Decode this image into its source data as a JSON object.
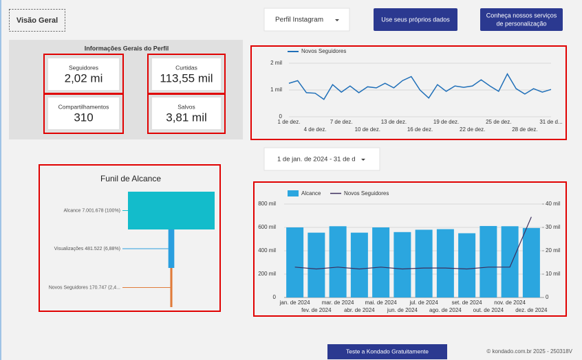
{
  "header": {
    "page_title": "Visão Geral",
    "profile_dropdown": "Perfil Instagram",
    "own_data_button": "Use seus  próprios dados",
    "services_button": [
      "Conheça nossos serviços",
      "de personalização"
    ],
    "date_range": "1 de jan. de 2024 - 31 de d"
  },
  "kpis": {
    "title": "Informações Gerais do Perfil",
    "items": [
      {
        "label": "Seguidores",
        "value": "2,02 mi"
      },
      {
        "label": "Curtidas",
        "value": "113,55 mil"
      },
      {
        "label": "Compartilhamentos",
        "value": "310"
      },
      {
        "label": "Salvos",
        "value": "3,81 mil"
      }
    ]
  },
  "chart_data": [
    {
      "type": "line",
      "categories": [
        "1 de dez.",
        null,
        null,
        "4 de dez.",
        null,
        null,
        "7 de dez.",
        null,
        null,
        "10 de dez.",
        null,
        null,
        "13 de dez.",
        null,
        null,
        "16 de dez.",
        null,
        null,
        "19 de dez.",
        null,
        null,
        "22 de dez.",
        null,
        null,
        "25 de dez.",
        null,
        null,
        "28 de dez.",
        null,
        null,
        "31 de d..."
      ],
      "series": [
        {
          "name": "Novos Seguidores",
          "color": "#1f6fb8",
          "values": [
            1250,
            1350,
            900,
            880,
            650,
            1200,
            920,
            1150,
            900,
            1120,
            1080,
            1250,
            1080,
            1350,
            1500,
            1000,
            700,
            1200,
            950,
            1150,
            1100,
            1150,
            1380,
            1150,
            950,
            1600,
            1050,
            850,
            1050,
            920,
            1020
          ]
        }
      ],
      "ylim": [
        0,
        2000
      ],
      "yticks": [
        0,
        {
          "value": 1000,
          "label": "1 mil"
        },
        {
          "value": 2000,
          "label": "2 mil"
        }
      ],
      "grid": true
    },
    {
      "type": "funnel",
      "title": "Funil de Alcance",
      "categories": [
        "Alcance",
        "Visualizações",
        "Novos Seguidores"
      ],
      "values": [
        7001678,
        481522,
        170747
      ],
      "value_labels": [
        "7.001.678 (100%)",
        "481.522 (6,88%)",
        "170.747 (2,4..."
      ],
      "colors": [
        "#13bccb",
        "#2a9fdf",
        "#e07b39"
      ]
    },
    {
      "type": "bar",
      "categories": [
        "jan. de 2024",
        "fev. de 2024",
        "mar. de 2024",
        "abr. de 2024",
        "mai. de 2024",
        "jun. de 2024",
        "jul. de 2024",
        "ago. de 2024",
        "set. de 2024",
        "out. de 2024",
        "nov. de 2024",
        "dez. de 2024"
      ],
      "series": [
        {
          "name": "Alcance",
          "type": "bar",
          "color": "#2ba6df",
          "values": [
            600000,
            555000,
            610000,
            555000,
            600000,
            560000,
            580000,
            585000,
            550000,
            612000,
            610000,
            595000
          ]
        },
        {
          "name": "Novos Seguidores",
          "type": "line",
          "axis": "y2",
          "color": "#3b2d5c",
          "values": [
            13000,
            12200,
            13000,
            12200,
            13000,
            12200,
            12600,
            12600,
            12200,
            13000,
            13000,
            34500
          ]
        }
      ],
      "ylim": [
        0,
        800000
      ],
      "yticks": [
        0,
        {
          "value": 200000,
          "label": "200 mil"
        },
        {
          "value": 400000,
          "label": "400 mil"
        },
        {
          "value": 600000,
          "label": "600 mil"
        },
        {
          "value": 800000,
          "label": "800 mil"
        }
      ],
      "y2lim": [
        0,
        40000
      ],
      "y2ticks": [
        0,
        {
          "value": 10000,
          "label": "10 mil"
        },
        {
          "value": 20000,
          "label": "20 mil"
        },
        {
          "value": 30000,
          "label": "30 mil"
        },
        {
          "value": 40000,
          "label": "40 mil"
        }
      ],
      "grid": true
    }
  ],
  "footer": {
    "trial_button": "Teste a Kondado Gratuitamente",
    "copyright": "© kondado.com.br 2025 - 250318V"
  }
}
